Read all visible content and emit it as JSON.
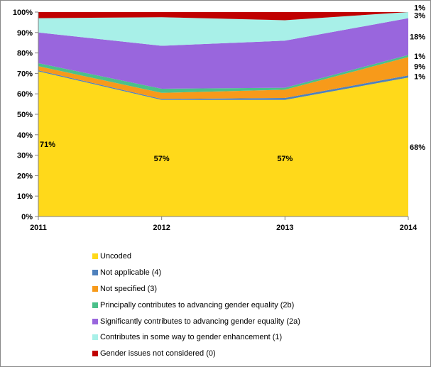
{
  "chart_data": {
    "type": "area",
    "stacked": true,
    "x": [
      "2011",
      "2012",
      "2013",
      "2014"
    ],
    "ylim": [
      0,
      100
    ],
    "yticks": [
      "0%",
      "10%",
      "20%",
      "30%",
      "40%",
      "50%",
      "60%",
      "70%",
      "80%",
      "90%",
      "100%"
    ],
    "grid": false,
    "legend_position": "bottom",
    "series": [
      {
        "name": "Uncoded",
        "color": "#FFD91A",
        "values": [
          71,
          57,
          57,
          68
        ]
      },
      {
        "name": "Not applicable (4)",
        "color": "#4F81BD",
        "values": [
          0.5,
          0.5,
          1,
          1
        ]
      },
      {
        "name": "Not specified (3)",
        "color": "#F79A1A",
        "values": [
          2,
          3,
          4,
          9
        ]
      },
      {
        "name": "Principally contributes to advancing gender equality (2b)",
        "color": "#4BC08A",
        "values": [
          1.5,
          2,
          1,
          1
        ]
      },
      {
        "name": "Significantly contributes to advancing gender equality (2a)",
        "color": "#9966DD",
        "values": [
          15,
          21,
          23,
          18
        ]
      },
      {
        "name": "Contributes in some way to gender enhancement (1)",
        "color": "#A8F0E8",
        "values": [
          7,
          14,
          10,
          3
        ]
      },
      {
        "name": "Gender issues not considered (0)",
        "color": "#C00000",
        "values": [
          3,
          2.5,
          4,
          1
        ]
      }
    ],
    "data_labels": [
      {
        "text": "71%",
        "series": 0,
        "point": 0
      },
      {
        "text": "57%",
        "series": 0,
        "point": 1
      },
      {
        "text": "57%",
        "series": 0,
        "point": 2
      },
      {
        "text": "68%",
        "series": 0,
        "point": 3
      },
      {
        "text": "1%",
        "series": 1,
        "point": 3
      },
      {
        "text": "9%",
        "series": 2,
        "point": 3
      },
      {
        "text": "1%",
        "series": 3,
        "point": 3
      },
      {
        "text": "18%",
        "series": 4,
        "point": 3
      },
      {
        "text": "3%",
        "series": 5,
        "point": 3
      },
      {
        "text": "1%",
        "series": 6,
        "point": 3
      }
    ]
  }
}
